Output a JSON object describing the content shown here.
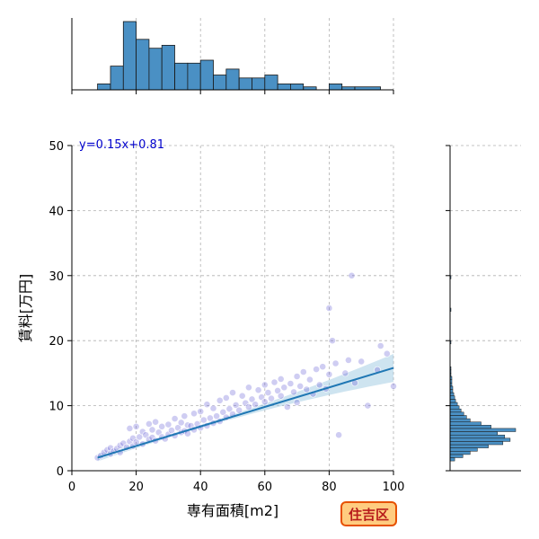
{
  "chart_data": {
    "type": "scatter",
    "xlabel": "専有面積[m2]",
    "ylabel": "賃料[万円]",
    "xlim": [
      0,
      100
    ],
    "ylim": [
      0,
      50
    ],
    "x_ticks": [
      0,
      20,
      40,
      60,
      80,
      100
    ],
    "y_ticks": [
      0,
      10,
      20,
      30,
      40,
      50
    ],
    "grid": true,
    "annotation": "y=0.15x+0.81",
    "badge": "住吉区",
    "regression": {
      "slope": 0.15,
      "intercept": 0.81,
      "x_range": [
        8,
        100
      ]
    },
    "series": [
      {
        "points": [
          [
            8,
            2.0
          ],
          [
            9,
            2.3
          ],
          [
            10,
            2.8
          ],
          [
            11,
            3.2
          ],
          [
            12,
            3.5
          ],
          [
            12,
            2.6
          ],
          [
            13,
            3.0
          ],
          [
            14,
            3.4
          ],
          [
            15,
            3.9
          ],
          [
            15,
            2.8
          ],
          [
            16,
            4.2
          ],
          [
            17,
            3.6
          ],
          [
            18,
            4.5
          ],
          [
            18,
            6.5
          ],
          [
            19,
            3.8
          ],
          [
            19,
            5.0
          ],
          [
            20,
            4.4
          ],
          [
            20,
            6.8
          ],
          [
            21,
            5.2
          ],
          [
            22,
            4.1
          ],
          [
            22,
            6.0
          ],
          [
            23,
            5.5
          ],
          [
            24,
            4.8
          ],
          [
            24,
            7.2
          ],
          [
            25,
            5.1
          ],
          [
            25,
            6.3
          ],
          [
            26,
            4.6
          ],
          [
            26,
            7.5
          ],
          [
            27,
            5.9
          ],
          [
            28,
            5.2
          ],
          [
            28,
            6.8
          ],
          [
            29,
            4.9
          ],
          [
            30,
            5.6
          ],
          [
            30,
            7.1
          ],
          [
            31,
            6.2
          ],
          [
            32,
            5.4
          ],
          [
            32,
            8.0
          ],
          [
            33,
            6.6
          ],
          [
            34,
            5.9
          ],
          [
            34,
            7.4
          ],
          [
            35,
            6.1
          ],
          [
            35,
            8.4
          ],
          [
            36,
            5.7
          ],
          [
            36,
            7.0
          ],
          [
            37,
            6.9
          ],
          [
            38,
            6.3
          ],
          [
            38,
            8.8
          ],
          [
            39,
            7.2
          ],
          [
            40,
            6.6
          ],
          [
            40,
            9.1
          ],
          [
            41,
            7.8
          ],
          [
            42,
            6.9
          ],
          [
            42,
            10.2
          ],
          [
            43,
            8.1
          ],
          [
            44,
            7.3
          ],
          [
            44,
            9.6
          ],
          [
            45,
            8.4
          ],
          [
            46,
            7.6
          ],
          [
            46,
            10.8
          ],
          [
            47,
            9.0
          ],
          [
            48,
            8.2
          ],
          [
            48,
            11.2
          ],
          [
            49,
            9.5
          ],
          [
            50,
            8.7
          ],
          [
            50,
            12.0
          ],
          [
            51,
            10.1
          ],
          [
            52,
            9.3
          ],
          [
            53,
            11.5
          ],
          [
            54,
            10.4
          ],
          [
            55,
            9.8
          ],
          [
            55,
            12.8
          ],
          [
            56,
            11.0
          ],
          [
            57,
            10.2
          ],
          [
            58,
            12.4
          ],
          [
            59,
            11.3
          ],
          [
            60,
            10.6
          ],
          [
            60,
            13.2
          ],
          [
            61,
            12.0
          ],
          [
            62,
            11.1
          ],
          [
            63,
            13.6
          ],
          [
            64,
            12.3
          ],
          [
            65,
            11.5
          ],
          [
            65,
            14.1
          ],
          [
            66,
            12.8
          ],
          [
            67,
            9.8
          ],
          [
            68,
            13.4
          ],
          [
            69,
            12.1
          ],
          [
            70,
            14.5
          ],
          [
            70,
            10.5
          ],
          [
            71,
            13.0
          ],
          [
            72,
            15.2
          ],
          [
            73,
            12.5
          ],
          [
            74,
            14.0
          ],
          [
            75,
            11.8
          ],
          [
            76,
            15.6
          ],
          [
            77,
            13.2
          ],
          [
            78,
            16.0
          ],
          [
            79,
            12.6
          ],
          [
            80,
            25.0
          ],
          [
            80,
            14.8
          ],
          [
            81,
            20.0
          ],
          [
            82,
            16.5
          ],
          [
            83,
            5.5
          ],
          [
            85,
            15.0
          ],
          [
            86,
            17.0
          ],
          [
            87,
            30.0
          ],
          [
            88,
            13.5
          ],
          [
            90,
            16.8
          ],
          [
            92,
            10.0
          ],
          [
            95,
            15.5
          ],
          [
            96,
            19.2
          ],
          [
            98,
            18.0
          ],
          [
            100,
            13.0
          ]
        ]
      }
    ],
    "top_histogram": {
      "bins": [
        [
          8,
          12,
          2
        ],
        [
          12,
          16,
          8
        ],
        [
          16,
          20,
          23
        ],
        [
          20,
          24,
          17
        ],
        [
          24,
          28,
          14
        ],
        [
          28,
          32,
          15
        ],
        [
          32,
          36,
          9
        ],
        [
          36,
          40,
          9
        ],
        [
          40,
          44,
          10
        ],
        [
          44,
          48,
          5
        ],
        [
          48,
          52,
          7
        ],
        [
          52,
          56,
          4
        ],
        [
          56,
          60,
          4
        ],
        [
          60,
          64,
          5
        ],
        [
          64,
          68,
          2
        ],
        [
          68,
          72,
          2
        ],
        [
          72,
          76,
          1
        ],
        [
          76,
          80,
          0
        ],
        [
          80,
          84,
          2
        ],
        [
          84,
          88,
          1
        ],
        [
          88,
          96,
          1
        ]
      ]
    },
    "right_histogram": {
      "bins": [
        [
          1.5,
          2.0,
          5
        ],
        [
          2.0,
          2.5,
          14
        ],
        [
          2.5,
          3.0,
          22
        ],
        [
          3.0,
          3.5,
          30
        ],
        [
          3.5,
          4.0,
          42
        ],
        [
          4.0,
          4.5,
          58
        ],
        [
          4.5,
          5.0,
          66
        ],
        [
          5.0,
          5.5,
          60
        ],
        [
          5.5,
          6.0,
          52
        ],
        [
          6.0,
          6.5,
          72
        ],
        [
          6.5,
          7.0,
          45
        ],
        [
          7.0,
          7.5,
          34
        ],
        [
          7.5,
          8.0,
          22
        ],
        [
          8.0,
          8.5,
          18
        ],
        [
          8.5,
          9.0,
          15
        ],
        [
          9.0,
          9.5,
          12
        ],
        [
          9.5,
          10.0,
          10
        ],
        [
          10.0,
          10.5,
          8
        ],
        [
          10.5,
          11.0,
          6
        ],
        [
          11.0,
          11.5,
          5
        ],
        [
          11.5,
          12.0,
          4
        ],
        [
          12.0,
          12.5,
          3
        ],
        [
          12.5,
          13.0,
          3
        ],
        [
          13.0,
          13.5,
          2
        ],
        [
          13.5,
          14.0,
          2
        ],
        [
          14.0,
          14.5,
          2
        ],
        [
          14.5,
          15.0,
          1
        ],
        [
          15.0,
          15.5,
          1
        ],
        [
          15.5,
          16.0,
          1
        ],
        [
          19.5,
          20.0,
          1
        ],
        [
          24.5,
          25.0,
          1
        ],
        [
          29.5,
          30.0,
          1
        ]
      ]
    },
    "colors": {
      "point": "#6a64d8",
      "point_stroke": "#ffffff",
      "regression": "#1f77b4",
      "ci_band": "#9ecae1",
      "hist_fill": "#4a90c4",
      "hist_stroke": "#1a1a1a",
      "grid": "#b0b0b0",
      "annotation": "#0000cc",
      "badge_fill": "#ffcc80",
      "badge_stroke": "#e65100",
      "badge_text": "#b71c1c"
    }
  }
}
